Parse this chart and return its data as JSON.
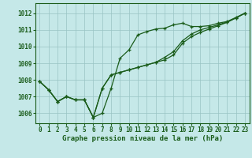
{
  "x": [
    0,
    1,
    2,
    3,
    4,
    5,
    6,
    7,
    8,
    9,
    10,
    11,
    12,
    13,
    14,
    15,
    16,
    17,
    18,
    19,
    20,
    21,
    22,
    23
  ],
  "line_main": [
    1007.9,
    1007.4,
    1006.7,
    1007.0,
    1006.8,
    1006.8,
    1005.75,
    1006.0,
    1007.5,
    1009.3,
    1009.8,
    1010.7,
    1010.9,
    1011.05,
    1011.1,
    1011.3,
    1011.4,
    1011.2,
    1011.2,
    1011.25,
    1011.4,
    1011.5,
    1011.75,
    1012.0
  ],
  "line_diag1": [
    1007.9,
    1007.4,
    1006.7,
    1007.0,
    1006.8,
    1006.8,
    1005.75,
    1007.5,
    1008.3,
    1008.45,
    1008.6,
    1008.75,
    1008.9,
    1009.05,
    1009.2,
    1009.5,
    1010.2,
    1010.6,
    1010.85,
    1011.05,
    1011.25,
    1011.45,
    1011.72,
    1012.0
  ],
  "line_diag2": [
    1007.9,
    1007.4,
    1006.7,
    1007.0,
    1006.8,
    1006.8,
    1005.75,
    1007.5,
    1008.3,
    1008.45,
    1008.6,
    1008.75,
    1008.9,
    1009.05,
    1009.35,
    1009.7,
    1010.35,
    1010.75,
    1011.0,
    1011.15,
    1011.3,
    1011.48,
    1011.72,
    1012.0
  ],
  "ylim": [
    1005.4,
    1012.6
  ],
  "yticks": [
    1006,
    1007,
    1008,
    1009,
    1010,
    1011,
    1012
  ],
  "xticks": [
    0,
    1,
    2,
    3,
    4,
    5,
    6,
    7,
    8,
    9,
    10,
    11,
    12,
    13,
    14,
    15,
    16,
    17,
    18,
    19,
    20,
    21,
    22,
    23
  ],
  "xlim": [
    -0.5,
    23.5
  ],
  "xlabel": "Graphe pression niveau de la mer (hPa)",
  "bg_color": "#c5e8e8",
  "line_color": "#1a5c1a",
  "grid_color": "#99c4c4",
  "tick_fontsize": 5.5,
  "label_fontsize": 6.5,
  "linewidth": 0.9,
  "markersize": 3.0
}
